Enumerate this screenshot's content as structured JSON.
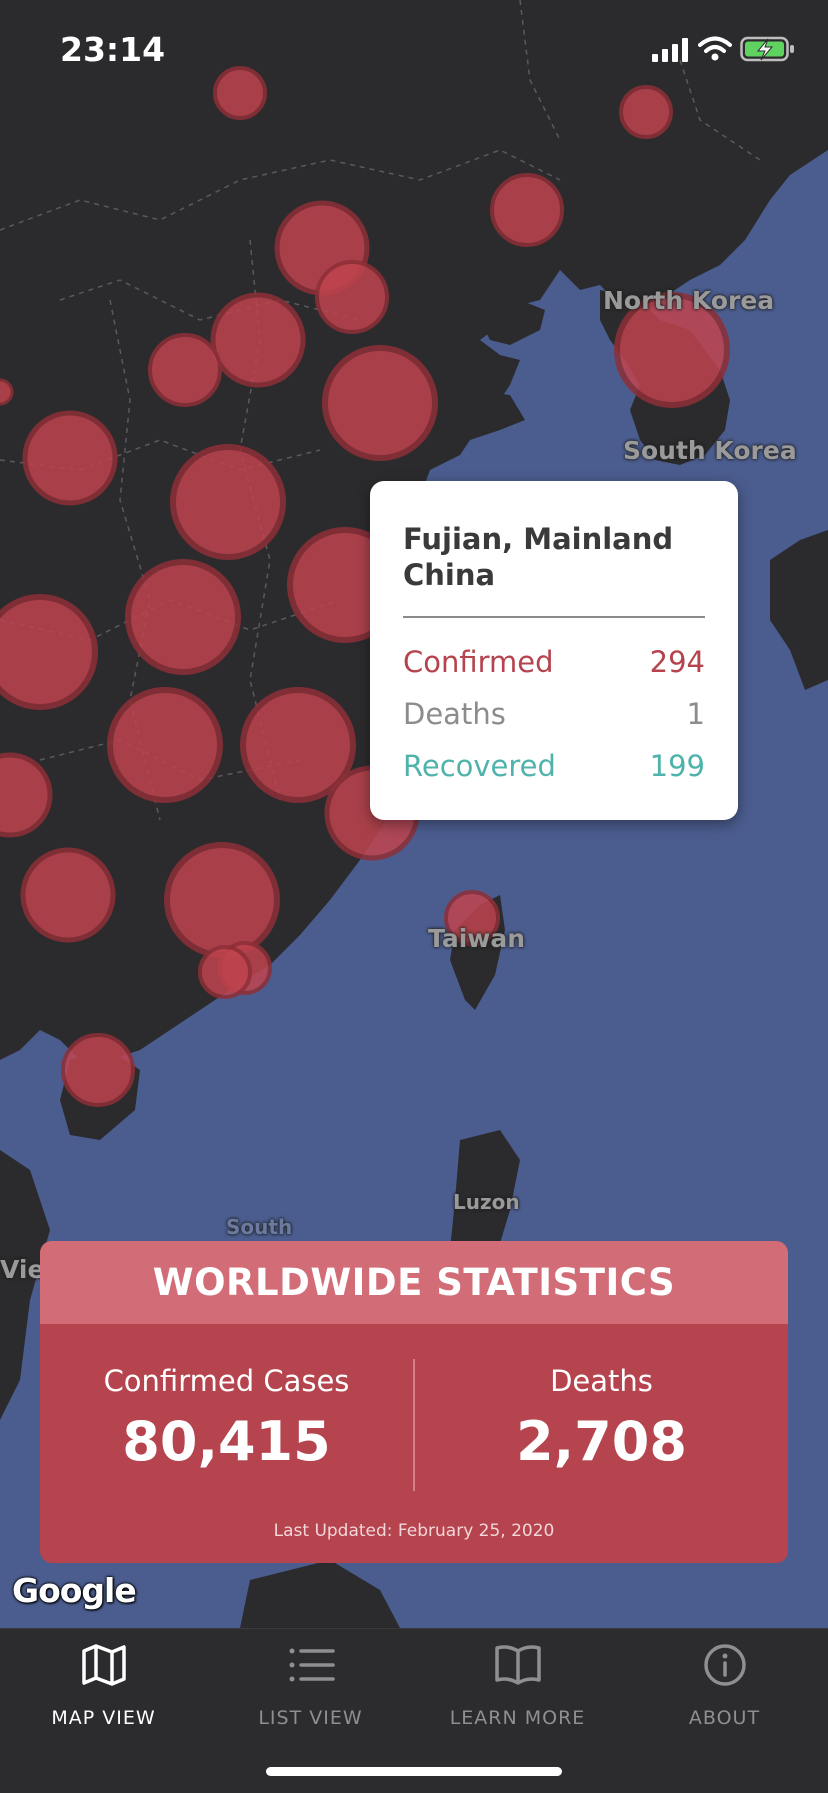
{
  "status_bar": {
    "time": "23:14"
  },
  "map": {
    "labels": [
      "North Korea",
      "South Korea",
      "Taiwan",
      "Luzon",
      "South",
      "Viet"
    ],
    "attribution": "Google"
  },
  "popup": {
    "title": "Fujian, Mainland China",
    "rows": [
      {
        "label": "Confirmed",
        "value": "294",
        "color": "#b5444e"
      },
      {
        "label": "Deaths",
        "value": "1",
        "color": "#8c8c8c"
      },
      {
        "label": "Recovered",
        "value": "199",
        "color": "#4fb3ac"
      }
    ]
  },
  "stats": {
    "heading": "WORLDWIDE STATISTICS",
    "confirmed_label": "Confirmed Cases",
    "confirmed_value": "80,415",
    "deaths_label": "Deaths",
    "deaths_value": "2,708",
    "updated": "Last Updated: February 25, 2020"
  },
  "tabs": [
    {
      "label": "MAP VIEW",
      "icon": "map-icon",
      "active": true
    },
    {
      "label": "LIST VIEW",
      "icon": "list-icon",
      "active": false
    },
    {
      "label": "LEARN MORE",
      "icon": "book-icon",
      "active": false
    },
    {
      "label": "ABOUT",
      "icon": "info-icon",
      "active": false
    }
  ],
  "colors": {
    "ocean": "#4b5d8f",
    "land": "#2b2b2d",
    "marker": "#c0444e",
    "accent": "#b5444e"
  }
}
